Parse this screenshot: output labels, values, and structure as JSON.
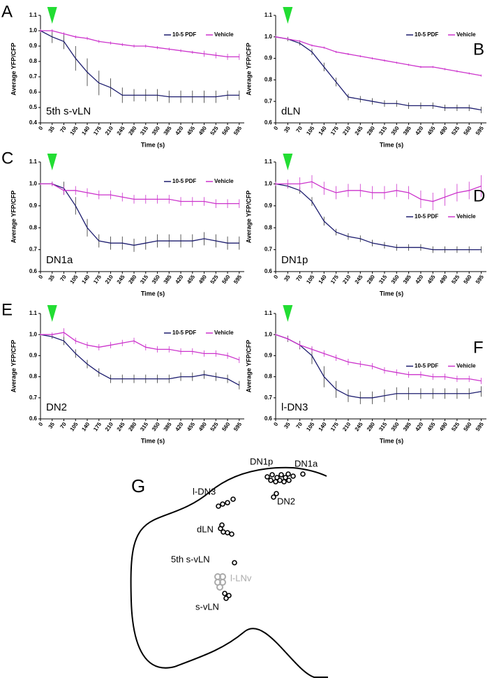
{
  "chart_data": [
    {
      "type": "line",
      "panel_label": "A",
      "annotation": "5th s-vLN",
      "xlabel": "Time (s)",
      "ylabel": "Average YFP/CFP",
      "x": [
        0,
        35,
        70,
        105,
        140,
        175,
        210,
        245,
        280,
        315,
        350,
        385,
        420,
        455,
        490,
        525,
        560,
        595
      ],
      "xlim": [
        0,
        610
      ],
      "xticks": [
        0,
        35,
        70,
        105,
        140,
        175,
        210,
        245,
        280,
        315,
        350,
        385,
        420,
        455,
        490,
        525,
        560,
        595
      ],
      "ylim": [
        0.4,
        1.1
      ],
      "yticks": [
        0.4,
        0.5,
        0.6,
        0.7,
        0.8,
        0.9,
        {
          "value": 1,
          "label": "1.0"
        },
        1.1
      ],
      "marker_x": 35,
      "legend": "upper right",
      "series": [
        {
          "name": "10-5 PDF",
          "color": "#1c1c6e",
          "values": [
            1.0,
            0.96,
            0.93,
            0.82,
            0.73,
            0.66,
            0.63,
            0.58,
            0.58,
            0.58,
            0.58,
            0.57,
            0.57,
            0.57,
            0.57,
            0.57,
            0.58,
            0.58
          ],
          "errors": [
            0.01,
            0.04,
            0.05,
            0.08,
            0.09,
            0.08,
            0.06,
            0.05,
            0.04,
            0.04,
            0.04,
            0.04,
            0.04,
            0.04,
            0.04,
            0.04,
            0.03,
            0.03
          ]
        },
        {
          "name": "Vehicle",
          "color": "#cc33cc",
          "values": [
            1.0,
            1.0,
            0.98,
            0.96,
            0.95,
            0.93,
            0.92,
            0.91,
            0.9,
            0.9,
            0.89,
            0.88,
            0.87,
            0.86,
            0.85,
            0.84,
            0.83,
            0.83
          ],
          "errors": [
            0.01,
            0.01,
            0.01,
            0.01,
            0.01,
            0.01,
            0.01,
            0.01,
            0.01,
            0.01,
            0.01,
            0.01,
            0.01,
            0.01,
            0.02,
            0.02,
            0.02,
            0.02
          ]
        }
      ]
    },
    {
      "type": "line",
      "panel_label": "B",
      "annotation": "dLN",
      "xlabel": "Time (s)",
      "ylabel": "Average YFP/CFP",
      "x": [
        0,
        35,
        70,
        105,
        140,
        175,
        210,
        245,
        280,
        315,
        350,
        385,
        420,
        455,
        490,
        525,
        560,
        595
      ],
      "xlim": [
        0,
        610
      ],
      "xticks": [
        0,
        35,
        70,
        105,
        140,
        175,
        210,
        245,
        280,
        315,
        350,
        385,
        420,
        455,
        490,
        525,
        560,
        595
      ],
      "ylim": [
        0.6,
        1.1
      ],
      "yticks": [
        0.6,
        0.7,
        0.8,
        0.9,
        {
          "value": 1,
          "label": "1.0"
        },
        1.1
      ],
      "marker_x": 35,
      "legend": "upper right",
      "series": [
        {
          "name": "10-5 PDF",
          "color": "#1c1c6e",
          "values": [
            1.0,
            0.99,
            0.97,
            0.93,
            0.86,
            0.79,
            0.72,
            0.71,
            0.7,
            0.69,
            0.69,
            0.68,
            0.68,
            0.68,
            0.67,
            0.67,
            0.67,
            0.66
          ],
          "errors": [
            0.005,
            0.01,
            0.01,
            0.015,
            0.02,
            0.02,
            0.015,
            0.015,
            0.015,
            0.015,
            0.015,
            0.015,
            0.015,
            0.015,
            0.015,
            0.015,
            0.015,
            0.015
          ]
        },
        {
          "name": "Vehicle",
          "color": "#cc33cc",
          "values": [
            1.0,
            0.99,
            0.98,
            0.96,
            0.95,
            0.93,
            0.92,
            0.91,
            0.9,
            0.89,
            0.88,
            0.87,
            0.86,
            0.86,
            0.85,
            0.84,
            0.83,
            0.82
          ],
          "errors": [
            0.005,
            0.005,
            0.005,
            0.005,
            0.005,
            0.005,
            0.005,
            0.005,
            0.005,
            0.005,
            0.005,
            0.005,
            0.005,
            0.005,
            0.005,
            0.005,
            0.005,
            0.005
          ]
        }
      ]
    },
    {
      "type": "line",
      "panel_label": "C",
      "annotation": "DN1a",
      "xlabel": "Time (s)",
      "ylabel": "Average YFP/CFP",
      "x": [
        0,
        35,
        70,
        105,
        140,
        175,
        210,
        245,
        280,
        315,
        350,
        385,
        420,
        455,
        490,
        525,
        560,
        595
      ],
      "xlim": [
        0,
        610
      ],
      "xticks": [
        0,
        35,
        70,
        105,
        140,
        175,
        210,
        245,
        280,
        315,
        350,
        385,
        420,
        455,
        490,
        525,
        560,
        595
      ],
      "ylim": [
        0.6,
        1.1
      ],
      "yticks": [
        0.6,
        0.7,
        0.8,
        0.9,
        {
          "value": 1,
          "label": "1.0"
        },
        1.1
      ],
      "marker_x": 35,
      "legend": "upper right",
      "series": [
        {
          "name": "10-5 PDF",
          "color": "#1c1c6e",
          "values": [
            1.0,
            1.0,
            0.98,
            0.9,
            0.8,
            0.74,
            0.73,
            0.73,
            0.72,
            0.73,
            0.74,
            0.74,
            0.74,
            0.74,
            0.75,
            0.74,
            0.73,
            0.73
          ],
          "errors": [
            0.005,
            0.01,
            0.03,
            0.04,
            0.04,
            0.03,
            0.03,
            0.03,
            0.03,
            0.03,
            0.03,
            0.03,
            0.03,
            0.03,
            0.03,
            0.03,
            0.03,
            0.03
          ]
        },
        {
          "name": "Vehicle",
          "color": "#cc33cc",
          "values": [
            1.0,
            1.0,
            0.97,
            0.97,
            0.96,
            0.95,
            0.95,
            0.94,
            0.93,
            0.93,
            0.93,
            0.93,
            0.92,
            0.92,
            0.92,
            0.91,
            0.91,
            0.91
          ],
          "errors": [
            0.005,
            0.01,
            0.02,
            0.02,
            0.02,
            0.02,
            0.02,
            0.02,
            0.02,
            0.02,
            0.02,
            0.02,
            0.02,
            0.02,
            0.02,
            0.02,
            0.02,
            0.02
          ]
        }
      ]
    },
    {
      "type": "line",
      "panel_label": "D",
      "annotation": "DN1p",
      "xlabel": "Time (s)",
      "ylabel": "Average YFP/CFP",
      "x": [
        0,
        35,
        70,
        105,
        140,
        175,
        210,
        245,
        280,
        315,
        350,
        385,
        420,
        455,
        490,
        525,
        560,
        595
      ],
      "xlim": [
        0,
        610
      ],
      "xticks": [
        0,
        35,
        70,
        105,
        140,
        175,
        210,
        245,
        280,
        315,
        350,
        385,
        420,
        455,
        490,
        525,
        560,
        595
      ],
      "ylim": [
        0.6,
        1.1
      ],
      "yticks": [
        0.6,
        0.7,
        0.8,
        0.9,
        {
          "value": 1,
          "label": "1.0"
        },
        1.1
      ],
      "marker_x": 35,
      "legend": "center right",
      "series": [
        {
          "name": "10-5 PDF",
          "color": "#1c1c6e",
          "values": [
            1.0,
            0.99,
            0.97,
            0.92,
            0.83,
            0.78,
            0.76,
            0.75,
            0.73,
            0.72,
            0.71,
            0.71,
            0.71,
            0.7,
            0.7,
            0.7,
            0.7,
            0.7
          ],
          "errors": [
            0.005,
            0.01,
            0.015,
            0.02,
            0.02,
            0.015,
            0.015,
            0.015,
            0.015,
            0.015,
            0.015,
            0.015,
            0.015,
            0.015,
            0.015,
            0.015,
            0.015,
            0.015
          ]
        },
        {
          "name": "Vehicle",
          "color": "#cc33cc",
          "values": [
            1.0,
            1.0,
            1.0,
            1.01,
            0.98,
            0.96,
            0.97,
            0.97,
            0.96,
            0.96,
            0.97,
            0.96,
            0.93,
            0.92,
            0.94,
            0.96,
            0.97,
            0.99
          ],
          "errors": [
            0.01,
            0.02,
            0.03,
            0.03,
            0.03,
            0.03,
            0.03,
            0.03,
            0.03,
            0.03,
            0.03,
            0.03,
            0.04,
            0.04,
            0.04,
            0.04,
            0.04,
            0.05
          ]
        }
      ]
    },
    {
      "type": "line",
      "panel_label": "E",
      "annotation": "DN2",
      "xlabel": "Time (s)",
      "ylabel": "Average YFP/CFP",
      "x": [
        0,
        35,
        70,
        105,
        140,
        175,
        210,
        245,
        280,
        315,
        350,
        385,
        420,
        455,
        490,
        525,
        560,
        595
      ],
      "xlim": [
        0,
        610
      ],
      "xticks": [
        0,
        35,
        70,
        105,
        140,
        175,
        210,
        245,
        280,
        315,
        350,
        385,
        420,
        455,
        490,
        525,
        560,
        595
      ],
      "ylim": [
        0.6,
        1.1
      ],
      "yticks": [
        0.6,
        0.7,
        0.8,
        0.9,
        {
          "value": 1,
          "label": "1.0"
        },
        1.1
      ],
      "marker_x": 35,
      "legend": "upper right",
      "series": [
        {
          "name": "10-5 PDF",
          "color": "#1c1c6e",
          "values": [
            1.0,
            0.99,
            0.97,
            0.91,
            0.86,
            0.82,
            0.79,
            0.79,
            0.79,
            0.79,
            0.79,
            0.79,
            0.8,
            0.8,
            0.81,
            0.8,
            0.79,
            0.76
          ],
          "errors": [
            0.005,
            0.01,
            0.02,
            0.02,
            0.02,
            0.02,
            0.02,
            0.02,
            0.02,
            0.02,
            0.02,
            0.02,
            0.02,
            0.02,
            0.02,
            0.02,
            0.02,
            0.02
          ]
        },
        {
          "name": "Vehicle",
          "color": "#cc33cc",
          "values": [
            1.0,
            1.0,
            1.01,
            0.97,
            0.95,
            0.94,
            0.95,
            0.96,
            0.97,
            0.94,
            0.93,
            0.93,
            0.92,
            0.92,
            0.91,
            0.91,
            0.9,
            0.88
          ],
          "errors": [
            0.005,
            0.01,
            0.02,
            0.015,
            0.015,
            0.015,
            0.015,
            0.015,
            0.015,
            0.015,
            0.015,
            0.015,
            0.015,
            0.015,
            0.015,
            0.015,
            0.015,
            0.015
          ]
        }
      ]
    },
    {
      "type": "line",
      "panel_label": "F",
      "annotation": "l-DN3",
      "xlabel": "Time (s)",
      "ylabel": "Average YFP/CFP",
      "x": [
        0,
        35,
        70,
        105,
        140,
        175,
        210,
        245,
        280,
        315,
        350,
        385,
        420,
        455,
        490,
        525,
        560,
        595
      ],
      "xlim": [
        0,
        610
      ],
      "xticks": [
        0,
        35,
        70,
        105,
        140,
        175,
        210,
        245,
        280,
        315,
        350,
        385,
        420,
        455,
        490,
        525,
        560,
        595
      ],
      "ylim": [
        0.6,
        1.1
      ],
      "yticks": [
        0.6,
        0.7,
        0.8,
        0.9,
        {
          "value": 1,
          "label": "1.0"
        },
        1.1
      ],
      "marker_x": 35,
      "legend": "center right",
      "series": [
        {
          "name": "10-5 PDF",
          "color": "#1c1c6e",
          "values": [
            1.0,
            0.98,
            0.95,
            0.9,
            0.8,
            0.74,
            0.71,
            0.7,
            0.7,
            0.71,
            0.72,
            0.72,
            0.72,
            0.72,
            0.72,
            0.72,
            0.72,
            0.73
          ],
          "errors": [
            0.005,
            0.015,
            0.02,
            0.04,
            0.05,
            0.04,
            0.03,
            0.03,
            0.03,
            0.03,
            0.03,
            0.03,
            0.025,
            0.025,
            0.025,
            0.025,
            0.025,
            0.025
          ]
        },
        {
          "name": "Vehicle",
          "color": "#cc33cc",
          "values": [
            1.0,
            0.98,
            0.95,
            0.93,
            0.91,
            0.89,
            0.87,
            0.86,
            0.85,
            0.83,
            0.82,
            0.81,
            0.81,
            0.8,
            0.8,
            0.79,
            0.79,
            0.78
          ],
          "errors": [
            0.005,
            0.01,
            0.015,
            0.015,
            0.015,
            0.015,
            0.015,
            0.015,
            0.015,
            0.015,
            0.015,
            0.015,
            0.015,
            0.015,
            0.015,
            0.015,
            0.015,
            0.015
          ]
        }
      ]
    }
  ],
  "diagram": {
    "panel_label": "G",
    "labels": [
      "DN1p",
      "DN1a",
      "l-DN3",
      "DN2",
      "dLN",
      "5th s-vLN",
      "l-LNv",
      "s-vLN"
    ]
  }
}
